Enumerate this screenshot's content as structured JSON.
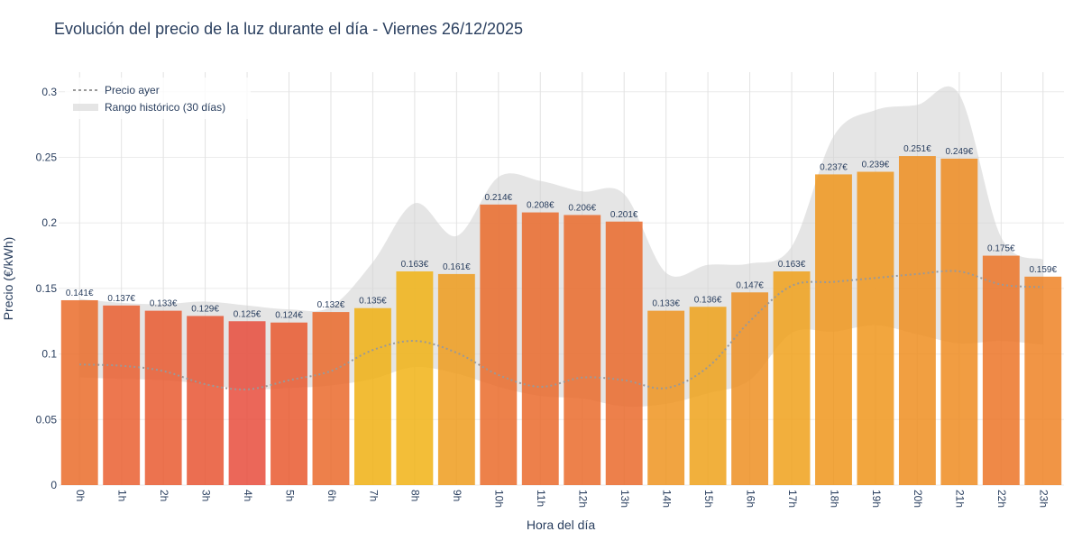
{
  "chart_data": {
    "type": "bar",
    "title": "Evolución del precio de la luz durante el día - Viernes 26/12/2025",
    "xlabel": "Hora del día",
    "ylabel": "Precio (€/kWh)",
    "ylim": [
      0,
      0.315
    ],
    "yticks": [
      0,
      0.05,
      0.1,
      0.15,
      0.2,
      0.25,
      0.3
    ],
    "ytick_labels": [
      "0",
      "0.05",
      "0.1",
      "0.15",
      "0.2",
      "0.25",
      "0.3"
    ],
    "categories": [
      "0h",
      "1h",
      "2h",
      "3h",
      "4h",
      "5h",
      "6h",
      "7h",
      "8h",
      "9h",
      "10h",
      "11h",
      "12h",
      "13h",
      "14h",
      "15h",
      "16h",
      "17h",
      "18h",
      "19h",
      "20h",
      "21h",
      "22h",
      "23h"
    ],
    "series": [
      {
        "values": [
          0.141,
          0.137,
          0.133,
          0.129,
          0.125,
          0.124,
          0.132,
          0.135,
          0.163,
          0.161,
          0.214,
          0.208,
          0.206,
          0.201,
          0.133,
          0.136,
          0.147,
          0.163,
          0.237,
          0.239,
          0.251,
          0.249,
          0.175,
          0.159
        ],
        "labels": [
          "0.141€",
          "0.137€",
          "0.133€",
          "0.129€",
          "0.125€",
          "0.124€",
          "0.132€",
          "0.135€",
          "0.163€",
          "0.161€",
          "0.214€",
          "0.208€",
          "0.206€",
          "0.201€",
          "0.133€",
          "0.136€",
          "0.147€",
          "0.163€",
          "0.237€",
          "0.239€",
          "0.251€",
          "0.249€",
          "0.175€",
          "0.159€"
        ],
        "colors": [
          "#ea6c2a",
          "#ea5f30",
          "#e95a30",
          "#e85532",
          "#e74c3c",
          "#e9592f",
          "#ea6a2b",
          "#f0b013",
          "#f1b315",
          "#ee9c1d",
          "#ea6b2a",
          "#ea6a2b",
          "#ea6b2b",
          "#ea6a2b",
          "#ee9420",
          "#efa21b",
          "#ed8f22",
          "#f0a11b",
          "#f0961c",
          "#f0961c",
          "#ef8e20",
          "#ef8c21",
          "#ec7427",
          "#ee8224"
        ]
      },
      {
        "name": "Precio ayer",
        "style": "dotted",
        "color": "#999999",
        "values": [
          0.092,
          0.091,
          0.087,
          0.077,
          0.073,
          0.08,
          0.087,
          0.103,
          0.11,
          0.101,
          0.084,
          0.075,
          0.082,
          0.08,
          0.074,
          0.09,
          0.125,
          0.152,
          0.155,
          0.158,
          0.161,
          0.163,
          0.153,
          0.151
        ]
      },
      {
        "name": "Rango histórico (30 días)",
        "style": "band",
        "color": "#d3d3d3",
        "upper": [
          0.142,
          0.139,
          0.138,
          0.14,
          0.137,
          0.134,
          0.136,
          0.17,
          0.215,
          0.19,
          0.235,
          0.232,
          0.224,
          0.222,
          0.162,
          0.168,
          0.169,
          0.182,
          0.266,
          0.286,
          0.29,
          0.298,
          0.189,
          0.172
        ],
        "lower": [
          0.082,
          0.081,
          0.08,
          0.077,
          0.073,
          0.074,
          0.076,
          0.081,
          0.09,
          0.085,
          0.075,
          0.068,
          0.066,
          0.06,
          0.062,
          0.07,
          0.08,
          0.116,
          0.117,
          0.122,
          0.115,
          0.108,
          0.11,
          0.107
        ]
      }
    ],
    "grid": true,
    "legend_placement": "top-left"
  }
}
